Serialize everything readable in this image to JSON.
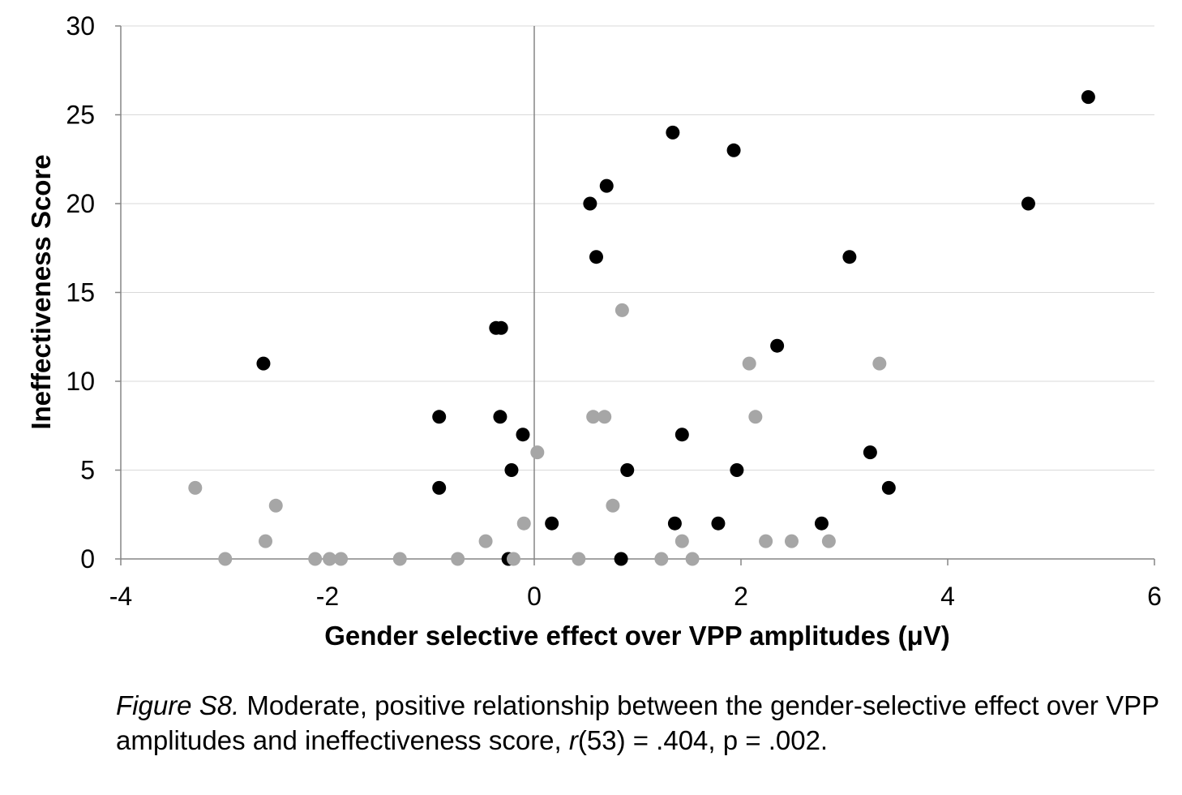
{
  "chart_data": {
    "type": "scatter",
    "xlabel": "Gender selective effect over VPP amplitudes  (μV)",
    "ylabel": "Ineffectiveness Score",
    "xlim": [
      -4,
      6
    ],
    "ylim": [
      0,
      30
    ],
    "xticks": [
      -4,
      -2,
      0,
      2,
      4,
      6
    ],
    "yticks": [
      0,
      5,
      10,
      15,
      20,
      25,
      30
    ],
    "grid": "horizontal",
    "legend": "none",
    "series": [
      {
        "color": "#000000",
        "points": [
          [
            -2.62,
            11
          ],
          [
            -0.92,
            8
          ],
          [
            -0.92,
            4
          ],
          [
            -0.37,
            13
          ],
          [
            -0.32,
            13
          ],
          [
            -0.33,
            8
          ],
          [
            -0.11,
            7
          ],
          [
            -0.22,
            5
          ],
          [
            -0.25,
            0
          ],
          [
            0.17,
            2
          ],
          [
            0.54,
            20
          ],
          [
            0.6,
            17
          ],
          [
            0.7,
            21
          ],
          [
            0.84,
            0
          ],
          [
            0.9,
            5
          ],
          [
            1.34,
            24
          ],
          [
            1.36,
            2
          ],
          [
            1.43,
            7
          ],
          [
            1.78,
            2
          ],
          [
            1.93,
            23
          ],
          [
            1.96,
            5
          ],
          [
            2.35,
            12
          ],
          [
            2.78,
            2
          ],
          [
            3.05,
            17
          ],
          [
            3.25,
            6
          ],
          [
            3.43,
            4
          ],
          [
            4.78,
            20
          ],
          [
            5.36,
            26
          ]
        ]
      },
      {
        "color": "#a6a6a6",
        "points": [
          [
            -3.28,
            4
          ],
          [
            -2.99,
            0
          ],
          [
            -2.6,
            1
          ],
          [
            -2.5,
            3
          ],
          [
            -2.12,
            0
          ],
          [
            -1.98,
            0
          ],
          [
            -1.87,
            0
          ],
          [
            -1.3,
            0
          ],
          [
            -0.74,
            0
          ],
          [
            -0.47,
            1
          ],
          [
            -0.2,
            0
          ],
          [
            -0.1,
            2
          ],
          [
            0.03,
            6
          ],
          [
            0.43,
            0
          ],
          [
            0.57,
            8
          ],
          [
            0.68,
            8
          ],
          [
            0.76,
            3
          ],
          [
            0.85,
            14
          ],
          [
            1.23,
            0
          ],
          [
            1.43,
            1
          ],
          [
            1.53,
            0
          ],
          [
            2.08,
            11
          ],
          [
            2.14,
            8
          ],
          [
            2.24,
            1
          ],
          [
            2.49,
            1
          ],
          [
            2.85,
            1
          ],
          [
            3.34,
            11
          ]
        ]
      }
    ]
  },
  "caption": {
    "label": "Figure S8.",
    "text_1": " Moderate, positive relationship between the gender-selective effect over VPP amplitudes and ineffectiveness score, ",
    "stat_symbol": "r",
    "text_2": "(53) = .404, p = .002."
  }
}
